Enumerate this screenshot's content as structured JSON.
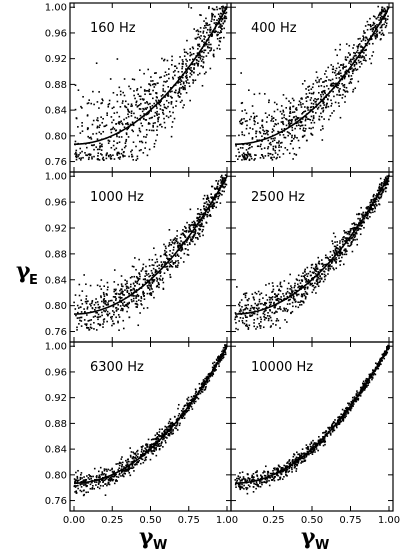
{
  "chart_data": {
    "type": "scatter",
    "layout": "3x2 grid of panels, shared axes",
    "xlabel": "γ",
    "xlabel_subscript": "W",
    "ylabel": "γ",
    "ylabel_subscript": "E",
    "xlim": [
      0.0,
      1.0
    ],
    "ylim": [
      0.75,
      1.005
    ],
    "yticks": [
      0.76,
      0.8,
      0.84,
      0.88,
      0.92,
      0.96,
      1.0
    ],
    "ytick_labels": [
      "0.76",
      "0.80",
      "0.84",
      "0.88",
      "0.92",
      "0.96",
      "1.00"
    ],
    "xticks_left": [
      0.0,
      0.25,
      0.5,
      0.75,
      1.0
    ],
    "xtick_labels_left": [
      "0.00",
      "0.25",
      "0.50",
      "0.75",
      "1.00"
    ],
    "xticks_right": [
      0.25,
      0.5,
      0.75,
      1.0
    ],
    "xtick_labels_right": [
      "0.25",
      "0.50",
      "0.75",
      "1.00"
    ],
    "fit_curve": {
      "description": "quadratic trend line",
      "x": [
        0.0,
        0.1,
        0.2,
        0.3,
        0.4,
        0.5,
        0.6,
        0.7,
        0.8,
        0.9,
        1.0
      ],
      "y": [
        0.787,
        0.789,
        0.796,
        0.806,
        0.821,
        0.84,
        0.864,
        0.891,
        0.923,
        0.959,
        1.0
      ]
    },
    "panels": [
      {
        "label": "160 Hz",
        "scatter_spread": 0.03,
        "n_points": 850
      },
      {
        "label": "400 Hz",
        "scatter_spread": 0.024,
        "n_points": 850
      },
      {
        "label": "1000 Hz",
        "scatter_spread": 0.017,
        "n_points": 850
      },
      {
        "label": "2500 Hz",
        "scatter_spread": 0.012,
        "n_points": 850
      },
      {
        "label": "6300 Hz",
        "scatter_spread": 0.007,
        "n_points": 850
      },
      {
        "label": "10000 Hz",
        "scatter_spread": 0.005,
        "n_points": 850
      }
    ],
    "grid": false,
    "legend": "none"
  }
}
